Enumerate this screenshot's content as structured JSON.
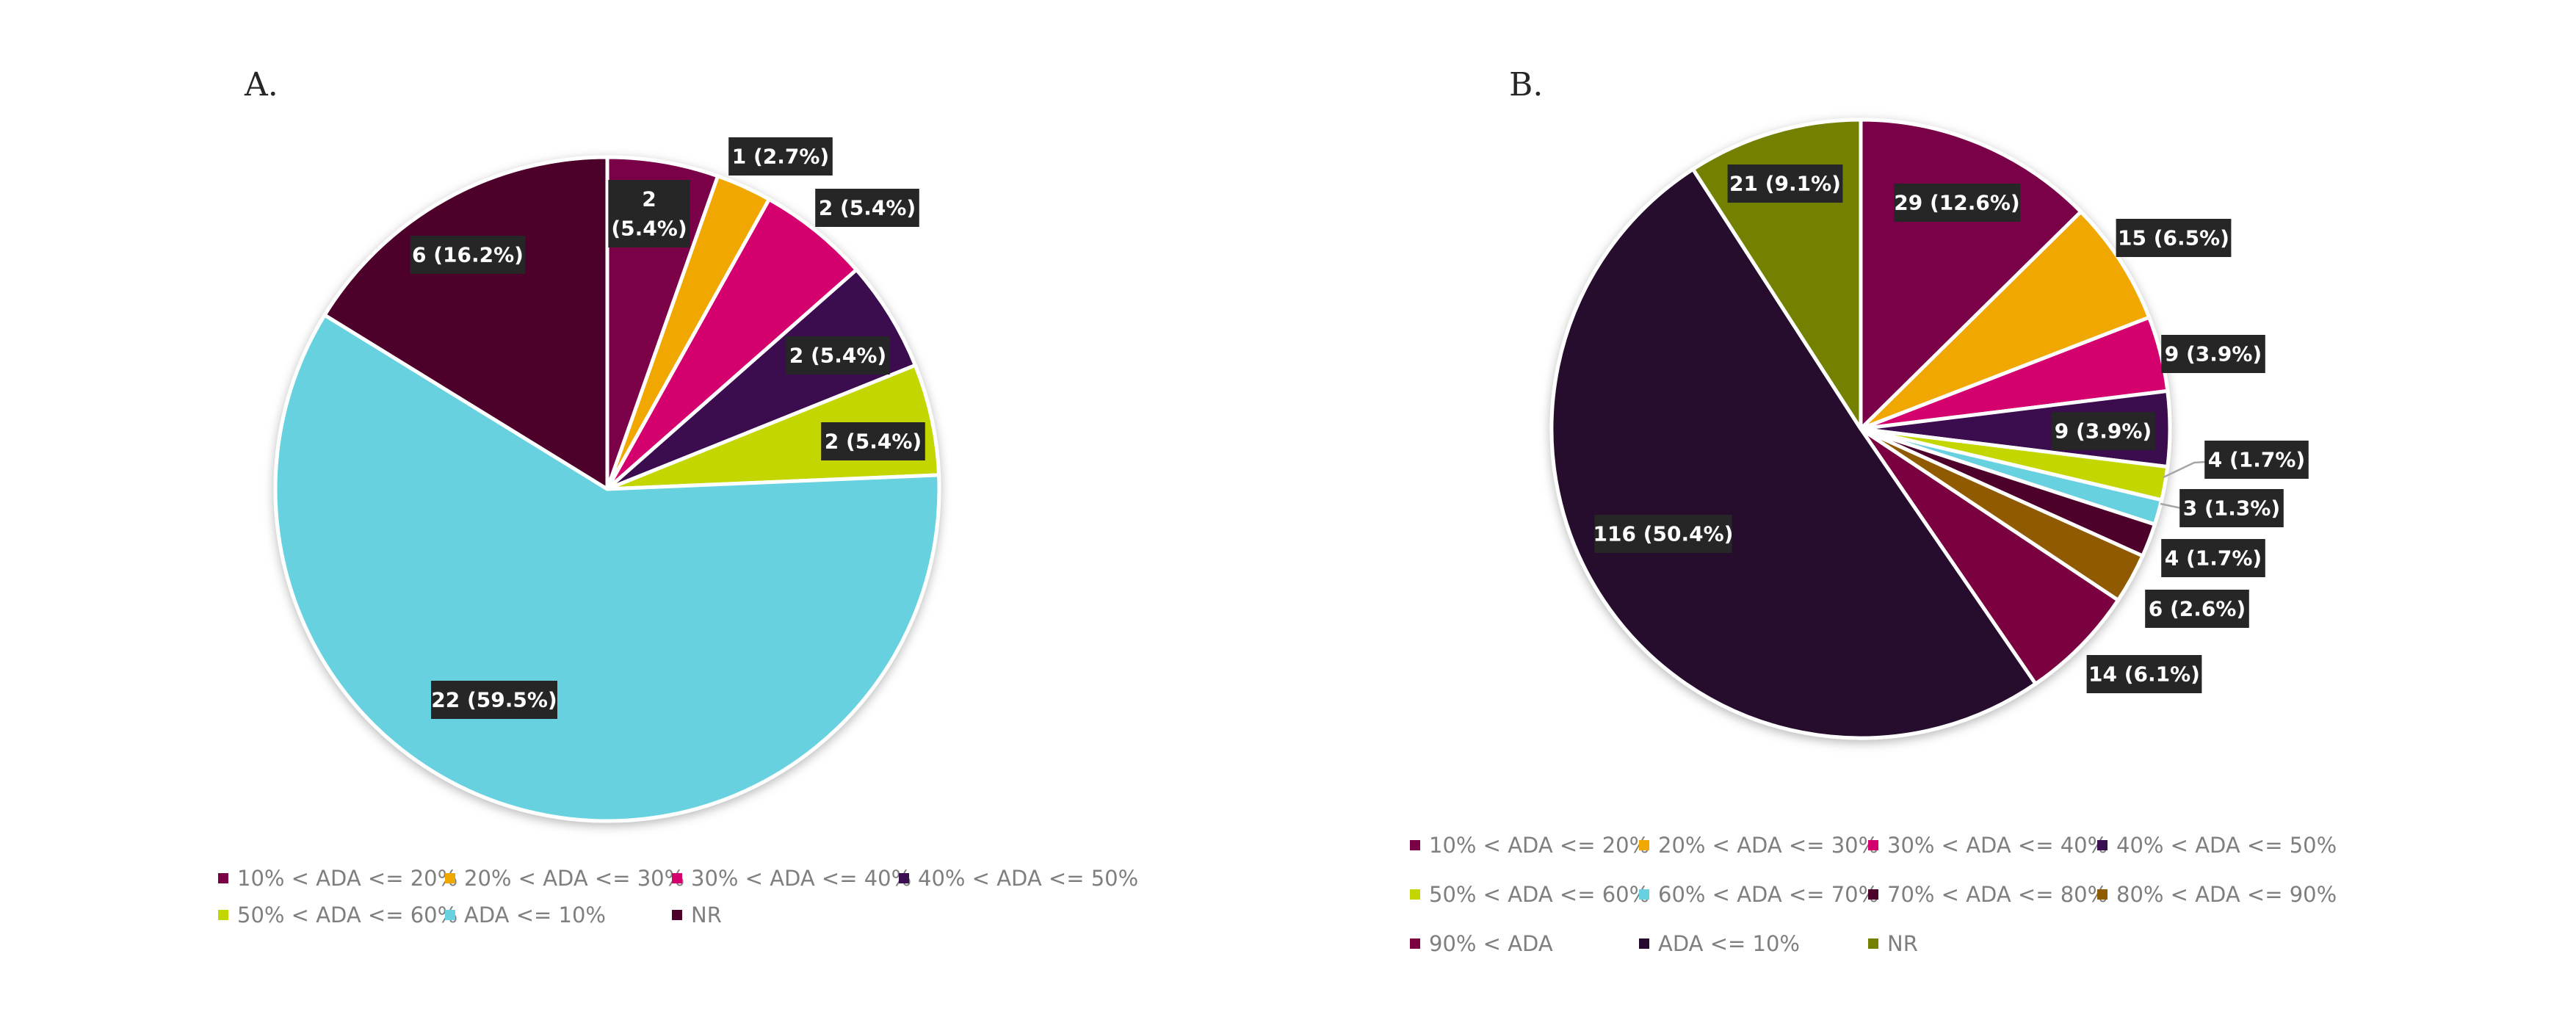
{
  "chart_data": [
    {
      "type": "pie",
      "panel_label": "A.",
      "title": "",
      "slices": [
        {
          "name": "10% < ADA <= 20%",
          "value": 2,
          "label": "2\n(5.4%)",
          "color": "#7a0046"
        },
        {
          "name": "20% < ADA <= 30%",
          "value": 1,
          "label": "1 (2.7%)",
          "color": "#f0a800"
        },
        {
          "name": "30% < ADA <= 40%",
          "value": 2,
          "label": "2 (5.4%)",
          "color": "#d4006d"
        },
        {
          "name": "40% < ADA <= 50%",
          "value": 2,
          "label": "2 (5.4%)",
          "color": "#3a0f4f"
        },
        {
          "name": "50% < ADA <= 60%",
          "value": 2,
          "label": "2 (5.4%)",
          "color": "#c4d600"
        },
        {
          "name": "ADA <= 10%",
          "value": 22,
          "label": "22 (59.5%)",
          "color": "#67d1e0"
        },
        {
          "name": "NR",
          "value": 6,
          "label": "6 (16.2%)",
          "color": "#4d0029"
        }
      ],
      "legend_placement": "bottom"
    },
    {
      "type": "pie",
      "panel_label": "B.",
      "title": "",
      "slices": [
        {
          "name": "10% < ADA <= 20%",
          "value": 29,
          "label": "29 (12.6%)",
          "color": "#7a0046"
        },
        {
          "name": "20% < ADA <= 30%",
          "value": 15,
          "label": "15 (6.5%)",
          "color": "#f0a800"
        },
        {
          "name": "30% < ADA <= 40%",
          "value": 9,
          "label": "9 (3.9%)",
          "color": "#d4006d"
        },
        {
          "name": "40% < ADA <= 50%",
          "value": 9,
          "label": "9 (3.9%)",
          "color": "#3a0f4f"
        },
        {
          "name": "50% < ADA <= 60%",
          "value": 4,
          "label": "4 (1.7%)",
          "color": "#c4d600"
        },
        {
          "name": "60% < ADA <= 70%",
          "value": 3,
          "label": "3 (1.3%)",
          "color": "#67d1e0"
        },
        {
          "name": "70% < ADA <= 80%",
          "value": 4,
          "label": "4 (1.7%)",
          "color": "#4d0029"
        },
        {
          "name": "80% < ADA <= 90%",
          "value": 6,
          "label": "6 (2.6%)",
          "color": "#8f5a00"
        },
        {
          "name": "90% < ADA",
          "value": 14,
          "label": "14 (6.1%)",
          "color": "#7a0040"
        },
        {
          "name": "ADA <= 10%",
          "value": 116,
          "label": "116 (50.4%)",
          "color": "#250a2e"
        },
        {
          "name": "NR",
          "value": 21,
          "label": "21 (9.1%)",
          "color": "#738000"
        }
      ],
      "legend_placement": "bottom"
    }
  ]
}
